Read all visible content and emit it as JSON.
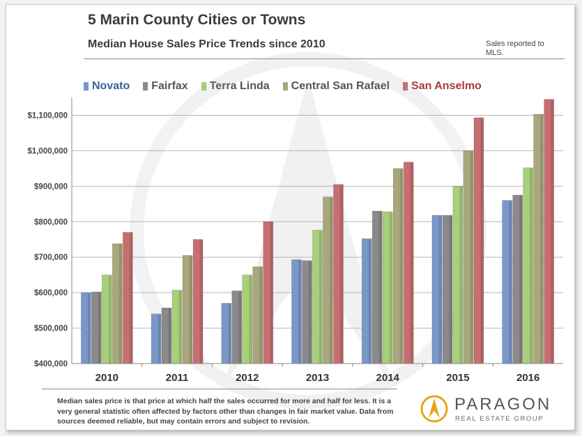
{
  "header": {
    "title": "5 Marin County Cities or Towns",
    "subtitle": "Median House Sales Price Trends since 2010",
    "note": "Sales reported to MLS."
  },
  "footer": {
    "text": "Median sales price is that price at which half the sales occurred for more and half for less. It is a very general statistic often affected by factors other than changes in fair market value. Data from sources deemed reliable, but may contain errors and subject to revision."
  },
  "logo": {
    "brand": "PARAGON",
    "tagline": "REAL ESTATE GROUP",
    "color": "#e8a417"
  },
  "chart_data": {
    "type": "bar",
    "title": "5 Marin County Cities or Towns",
    "subtitle": "Median House Sales Price Trends since 2010",
    "xlabel": "",
    "ylabel": "",
    "categories": [
      "2010",
      "2011",
      "2012",
      "2013",
      "2014",
      "2015",
      "2016"
    ],
    "ylim": [
      400000,
      1150000
    ],
    "yticks": [
      400000,
      500000,
      600000,
      700000,
      800000,
      900000,
      1000000,
      1100000
    ],
    "ytick_labels": [
      "$400,000",
      "$500,000",
      "$600,000",
      "$700,000",
      "$800,000",
      "$900,000",
      "$1,000,000",
      "$1,100,000"
    ],
    "grid": true,
    "legend_position": "top",
    "series": [
      {
        "name": "Novato",
        "color": "#7b97c9",
        "values": [
          600000,
          540000,
          570000,
          693000,
          752000,
          818000,
          860000
        ]
      },
      {
        "name": "Fairfax",
        "color": "#8a8a8a",
        "values": [
          602000,
          557000,
          605000,
          690000,
          830000,
          818000,
          875000
        ]
      },
      {
        "name": "Terra Linda",
        "color": "#a8cf7a",
        "values": [
          650000,
          607000,
          650000,
          776000,
          828000,
          900000,
          952000
        ]
      },
      {
        "name": "Central San Rafael",
        "color": "#a9a77b",
        "values": [
          738000,
          705000,
          673000,
          870000,
          950000,
          1000000,
          1103000
        ]
      },
      {
        "name": "San Anselmo",
        "color": "#c76f70",
        "values": [
          770000,
          750000,
          800000,
          905000,
          968000,
          1093000,
          1145000
        ]
      }
    ]
  }
}
